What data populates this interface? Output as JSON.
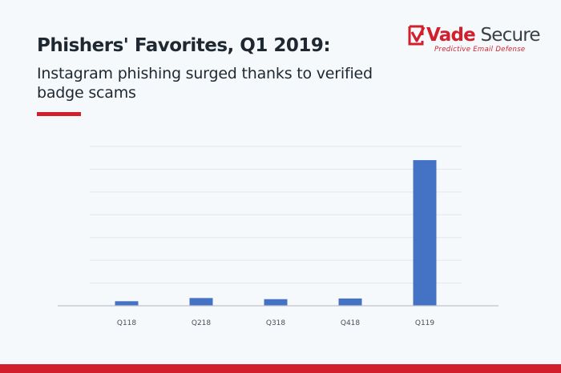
{
  "header": {
    "title": "Phishers' Favorites, Q1 2019:",
    "subtitle": "Instagram phishing surged thanks to verified badge scams"
  },
  "logo": {
    "word_part1": "Vade",
    "word_part2": " Secure",
    "tagline": "Predictive Email Defense"
  },
  "colors": {
    "accent": "#d21f2c",
    "bar": "#4472c4",
    "grid": "#e3e7eb",
    "axis": "#bfc3c7"
  },
  "chart_data": {
    "type": "bar",
    "categories": [
      "Q118",
      "Q218",
      "Q318",
      "Q418",
      "Q119"
    ],
    "values": [
      2,
      3.4,
      2.9,
      3.2,
      64
    ],
    "ylim": [
      0,
      70
    ],
    "grid": true,
    "legend": "none"
  }
}
